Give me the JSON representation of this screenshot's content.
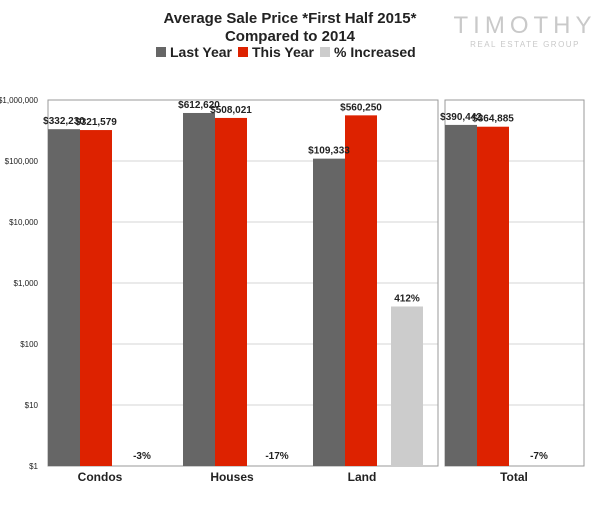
{
  "logo": {
    "name": "TIMOTHY",
    "tagline": "REAL ESTATE GROUP"
  },
  "colors": {
    "last_year": "#666666",
    "this_year": "#dd2200",
    "pct_increased": "#cccccc",
    "frame": "#999999"
  },
  "chart_data": {
    "type": "bar",
    "title": "Average Sale Price *First Half 2015*",
    "subtitle": "Compared to 2014",
    "xlabel": "",
    "ylabel": "",
    "y_scale": "log",
    "ylim": [
      1,
      1000000
    ],
    "y_ticks": [
      1,
      10,
      100,
      1000,
      10000,
      100000,
      1000000
    ],
    "y_tick_labels": [
      "$1",
      "$10",
      "$100",
      "$1,000",
      "$10,000",
      "$100,000",
      "$1,000,000"
    ],
    "grid": true,
    "legend_position": "top",
    "categories": [
      "Condos",
      "Houses",
      "Land",
      "Total"
    ],
    "series": [
      {
        "name": "Last Year",
        "values": [
          332230,
          612620,
          109333,
          390442
        ],
        "labels": [
          "$332,230",
          "$612,620",
          "$109,333",
          "$390,442"
        ]
      },
      {
        "name": "This Year",
        "values": [
          321579,
          508021,
          560250,
          364885
        ],
        "labels": [
          "$321,579",
          "$508,021",
          "$560,250",
          "$364,885"
        ]
      },
      {
        "name": "% Increased",
        "values": [
          -3,
          -17,
          412,
          -7
        ],
        "labels": [
          "-3%",
          "-17%",
          "412%",
          "-7%"
        ]
      }
    ]
  }
}
